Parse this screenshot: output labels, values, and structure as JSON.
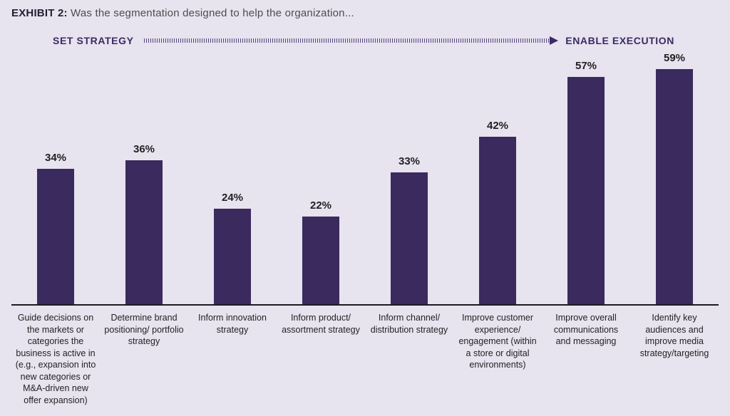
{
  "title": {
    "prefix": "EXHIBIT 2:",
    "text": " Was the segmentation designed to help the organization..."
  },
  "axis_header": {
    "left": "SET STRATEGY",
    "right": "ENABLE EXECUTION"
  },
  "colors": {
    "background": "#e7e3ef",
    "bar": "#3a2a5e",
    "header_text": "#3b2a64",
    "value_text": "#231f20"
  },
  "chart_data": {
    "type": "bar",
    "title": "EXHIBIT 2: Was the segmentation designed to help the organization...",
    "categories": [
      "Guide decisions on the markets or categories the business is active in (e.g., expansion into new categories or M&A-driven new offer expansion)",
      "Determine brand positioning/ portfolio strategy",
      "Inform innovation strategy",
      "Inform product/ assortment strategy",
      "Inform channel/ distribution strategy",
      "Improve customer experience/ engagement (within a store or digital environments)",
      "Improve overall communications and messaging",
      "Identify key audiences and improve media strategy/targeting"
    ],
    "values": [
      34,
      36,
      24,
      22,
      33,
      42,
      57,
      59
    ],
    "value_labels": [
      "34%",
      "36%",
      "24%",
      "22%",
      "33%",
      "42%",
      "57%",
      "59%"
    ],
    "xlabel": "",
    "ylabel": "",
    "ylim": [
      0,
      60
    ],
    "grid": false,
    "legend": "none",
    "annotations": [
      "SET STRATEGY",
      "ENABLE EXECUTION"
    ]
  }
}
